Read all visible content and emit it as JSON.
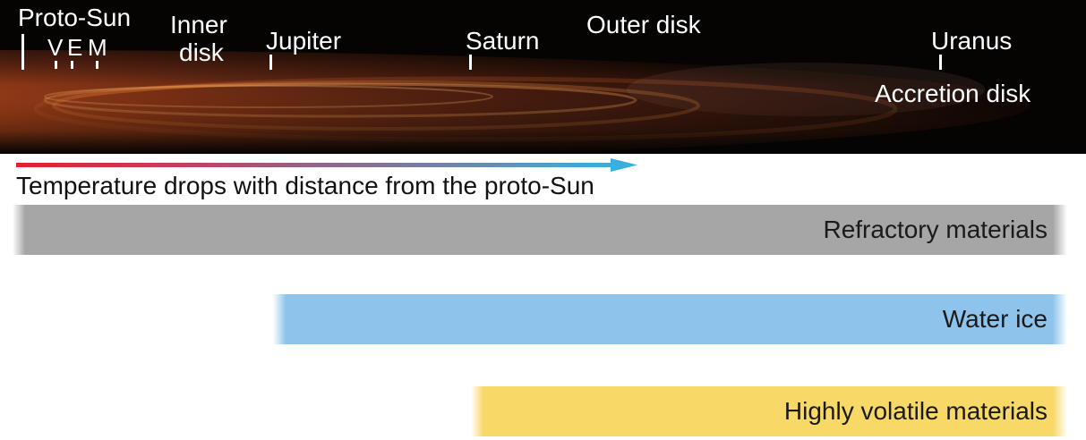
{
  "disk": {
    "labels": {
      "proto_sun": "Proto-Sun",
      "venus": "V",
      "earth": "E",
      "mars": "M",
      "inner_disk_line1": "Inner",
      "inner_disk_line2": "disk",
      "jupiter": "Jupiter",
      "saturn": "Saturn",
      "outer_disk": "Outer disk",
      "uranus": "Uranus",
      "accretion_disk": "Accretion disk"
    }
  },
  "temperature": {
    "caption": "Temperature drops with distance from the proto-Sun",
    "arrow_colors": {
      "hot": "#e8202a",
      "cold": "#3aaee0"
    }
  },
  "bands": [
    {
      "label": "Refractory materials",
      "color": "#a6a6a6"
    },
    {
      "label": "Water ice",
      "color": "#8ec4ec"
    },
    {
      "label": "Highly volatile materials",
      "color": "#f8d866"
    }
  ]
}
